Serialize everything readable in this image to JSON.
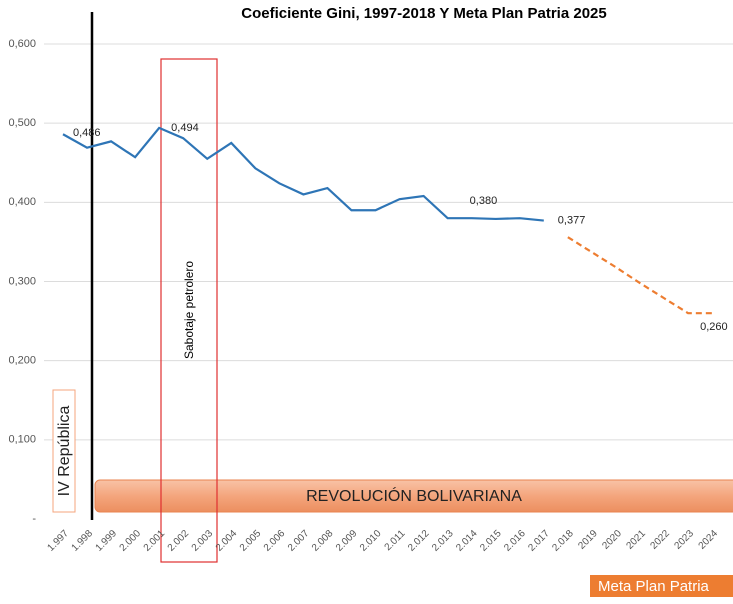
{
  "chart_data": {
    "type": "line",
    "title": "Coeficiente Gini, 1997-2018 Y Meta Plan Patria 2025",
    "categories": [
      "1.997",
      "1.998",
      "1.999",
      "2.000",
      "2.001",
      "2.002",
      "2.003",
      "2.004",
      "2.005",
      "2.006",
      "2.007",
      "2.008",
      "2.009",
      "2.010",
      "2.011",
      "2.012",
      "2.013",
      "2.014",
      "2.015",
      "2.016",
      "2.017",
      "2.018",
      "2019",
      "2020",
      "2021",
      "2022",
      "2023",
      "2024"
    ],
    "series": [
      {
        "color": "#2e75b6",
        "dashed": false,
        "values": [
          0.486,
          0.469,
          0.477,
          0.457,
          0.494,
          0.481,
          0.455,
          0.475,
          0.443,
          0.424,
          0.41,
          0.418,
          0.39,
          0.39,
          0.404,
          0.408,
          0.38,
          0.38,
          0.379,
          0.38,
          0.377,
          null,
          null,
          null,
          null,
          null,
          null,
          null
        ],
        "value_labels": [
          "0,486",
          null,
          null,
          null,
          "0,494",
          null,
          null,
          null,
          null,
          null,
          null,
          null,
          null,
          null,
          null,
          null,
          null,
          "0,380",
          null,
          null,
          "0,377",
          null,
          null,
          null,
          null,
          null,
          null,
          null
        ]
      },
      {
        "color": "#ed7d31",
        "dashed": true,
        "values": [
          null,
          null,
          null,
          null,
          null,
          null,
          null,
          null,
          null,
          null,
          null,
          null,
          null,
          null,
          null,
          null,
          null,
          null,
          null,
          null,
          null,
          0.356,
          0.337,
          0.318,
          0.298,
          0.279,
          0.26,
          0.26
        ],
        "value_labels": [
          null,
          null,
          null,
          null,
          null,
          null,
          null,
          null,
          null,
          null,
          null,
          null,
          null,
          null,
          null,
          null,
          null,
          null,
          null,
          null,
          null,
          null,
          null,
          null,
          null,
          null,
          null,
          "0,260"
        ]
      }
    ],
    "ylim": [
      0,
      0.6
    ],
    "yticks": [
      {
        "value": 0,
        "label": "-"
      },
      {
        "value": 0.1,
        "label": "0,100"
      },
      {
        "value": 0.2,
        "label": "0,200"
      },
      {
        "value": 0.3,
        "label": "0,300"
      },
      {
        "value": 0.4,
        "label": "0,400"
      },
      {
        "value": 0.5,
        "label": "0,500"
      },
      {
        "value": 0.6,
        "label": "0,600"
      }
    ],
    "grid": true,
    "annotations": {
      "left_period": "IV República",
      "box": "Sabotaje petrolero",
      "band": "REVOLUCIÓN BOLIVARIANA",
      "goal": "Meta Plan Patria"
    }
  }
}
